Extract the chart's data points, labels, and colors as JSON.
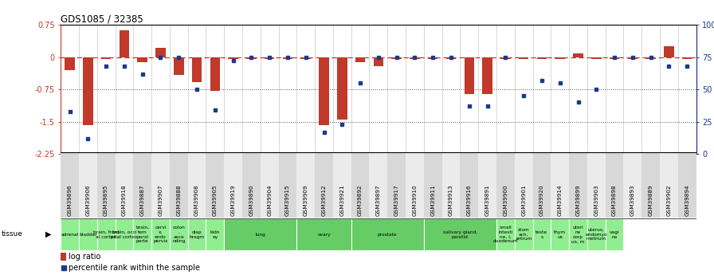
{
  "title": "GDS1085 / 32385",
  "gsm_labels": [
    "GSM39896",
    "GSM39906",
    "GSM39895",
    "GSM39918",
    "GSM39887",
    "GSM39907",
    "GSM39888",
    "GSM39908",
    "GSM39905",
    "GSM39919",
    "GSM39890",
    "GSM39904",
    "GSM39915",
    "GSM39909",
    "GSM39912",
    "GSM39921",
    "GSM39892",
    "GSM39897",
    "GSM39917",
    "GSM39910",
    "GSM39911",
    "GSM39913",
    "GSM39916",
    "GSM39891",
    "GSM39900",
    "GSM39901",
    "GSM39920",
    "GSM39914",
    "GSM39899",
    "GSM39903",
    "GSM39898",
    "GSM39893",
    "GSM39889",
    "GSM39902",
    "GSM39894"
  ],
  "log_ratio": [
    -0.3,
    -1.58,
    -0.05,
    0.62,
    -0.12,
    0.22,
    -0.42,
    -0.58,
    -0.78,
    -0.05,
    -0.05,
    -0.05,
    -0.05,
    -0.05,
    -1.58,
    -1.45,
    -0.12,
    -0.22,
    -0.05,
    -0.05,
    -0.05,
    -0.05,
    -0.85,
    -0.85,
    -0.05,
    -0.05,
    -0.05,
    -0.05,
    0.08,
    -0.05,
    -0.05,
    -0.05,
    -0.05,
    0.25,
    -0.05
  ],
  "percentile_rank": [
    33,
    12,
    68,
    68,
    62,
    75,
    75,
    50,
    34,
    72,
    75,
    75,
    75,
    75,
    17,
    23,
    55,
    75,
    75,
    75,
    75,
    75,
    37,
    37,
    75,
    45,
    57,
    55,
    40,
    50,
    75,
    75,
    75,
    68,
    68
  ],
  "ylim": [
    -2.25,
    0.75
  ],
  "y2lim": [
    0,
    100
  ],
  "bar_color": "#c0392b",
  "dot_color": "#1a3a8a",
  "ref_line_color": "#c0392b",
  "tissue_light": "#90ee90",
  "tissue_dark": "#66cc66",
  "gsm_light": "#e8e8e8",
  "gsm_dark": "#c8c8c8"
}
